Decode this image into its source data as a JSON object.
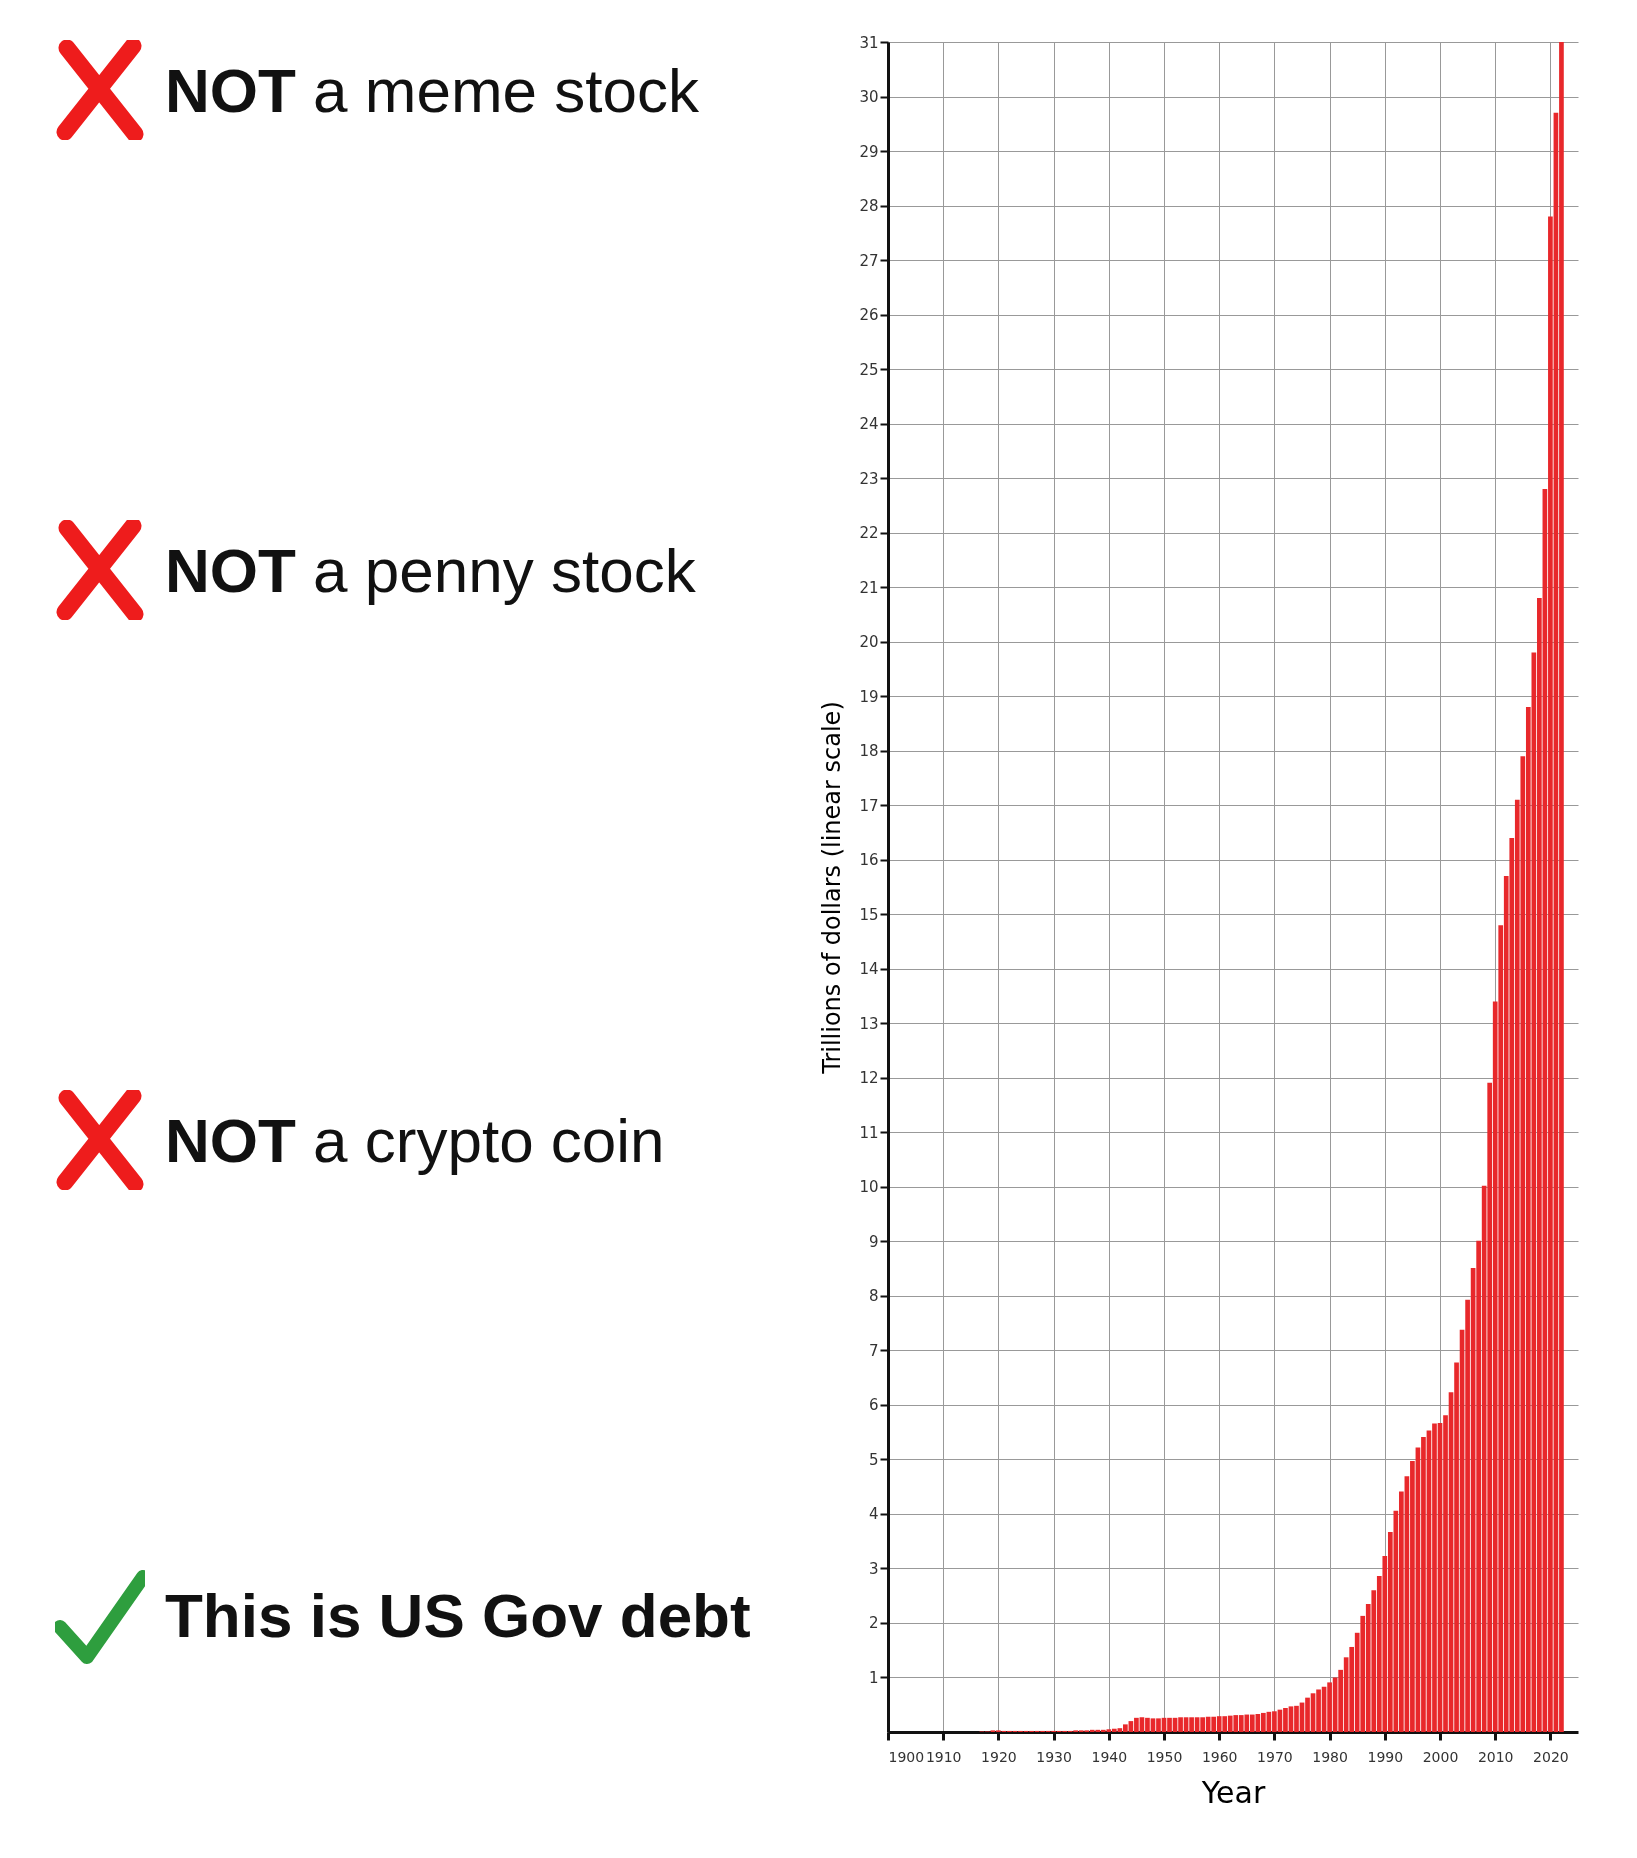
{
  "chart_data": {
    "type": "bar",
    "xlabel": "Year",
    "ylabel": "Trillions of dollars (linear scale)",
    "annotations": [
      "NOT a meme stock",
      "NOT a penny stock",
      "NOT a crypto coin",
      "This is US Gov debt"
    ],
    "x": [
      1900,
      1901,
      1902,
      1903,
      1904,
      1905,
      1906,
      1907,
      1908,
      1909,
      1910,
      1911,
      1912,
      1913,
      1914,
      1915,
      1916,
      1917,
      1918,
      1919,
      1920,
      1921,
      1922,
      1923,
      1924,
      1925,
      1926,
      1927,
      1928,
      1929,
      1930,
      1931,
      1932,
      1933,
      1934,
      1935,
      1936,
      1937,
      1938,
      1939,
      1940,
      1941,
      1942,
      1943,
      1944,
      1945,
      1946,
      1947,
      1948,
      1949,
      1950,
      1951,
      1952,
      1953,
      1954,
      1955,
      1956,
      1957,
      1958,
      1959,
      1960,
      1961,
      1962,
      1963,
      1964,
      1965,
      1966,
      1967,
      1968,
      1969,
      1970,
      1971,
      1972,
      1973,
      1974,
      1975,
      1976,
      1977,
      1978,
      1979,
      1980,
      1981,
      1982,
      1983,
      1984,
      1985,
      1986,
      1987,
      1988,
      1989,
      1990,
      1991,
      1992,
      1993,
      1994,
      1995,
      1996,
      1997,
      1998,
      1999,
      2000,
      2001,
      2002,
      2003,
      2004,
      2005,
      2006,
      2007,
      2008,
      2009,
      2010,
      2011,
      2012,
      2013,
      2014,
      2015,
      2016,
      2017,
      2018,
      2019,
      2020,
      2021,
      2022
    ],
    "series": [
      {
        "color": "#e8282b",
        "values": [
          0,
          0,
          0,
          0,
          0,
          0,
          0,
          0,
          0,
          0,
          0,
          0,
          0,
          0,
          0,
          0,
          0,
          0.01,
          0.01,
          0.03,
          0.03,
          0.02,
          0.02,
          0.02,
          0.02,
          0.02,
          0.02,
          0.02,
          0.02,
          0.02,
          0.02,
          0.02,
          0.02,
          0.02,
          0.03,
          0.03,
          0.03,
          0.04,
          0.04,
          0.04,
          0.05,
          0.06,
          0.07,
          0.14,
          0.2,
          0.26,
          0.27,
          0.26,
          0.25,
          0.25,
          0.26,
          0.26,
          0.26,
          0.27,
          0.27,
          0.27,
          0.27,
          0.27,
          0.28,
          0.28,
          0.29,
          0.29,
          0.3,
          0.31,
          0.31,
          0.32,
          0.32,
          0.33,
          0.35,
          0.37,
          0.38,
          0.41,
          0.44,
          0.47,
          0.48,
          0.54,
          0.63,
          0.71,
          0.78,
          0.83,
          0.91,
          1.0,
          1.14,
          1.37,
          1.56,
          1.82,
          2.13,
          2.35,
          2.6,
          2.86,
          3.23,
          3.67,
          4.06,
          4.41,
          4.69,
          4.97,
          5.22,
          5.41,
          5.53,
          5.66,
          5.67,
          5.81,
          6.23,
          6.78,
          7.38,
          7.93,
          8.51,
          9.01,
          10.02,
          11.91,
          13.4,
          14.8,
          15.7,
          16.4,
          17.1,
          17.9,
          18.8,
          19.8,
          20.8,
          22.8,
          27.8,
          29.7,
          31.0
        ]
      }
    ],
    "xlim": [
      1900,
      2025
    ],
    "xticks": [
      1900,
      1910,
      1920,
      1930,
      1940,
      1950,
      1960,
      1970,
      1980,
      1990,
      2000,
      2010,
      2020
    ],
    "ylim": [
      0,
      31
    ],
    "yticks": [
      1,
      2,
      3,
      4,
      5,
      6,
      7,
      8,
      9,
      10,
      11,
      12,
      13,
      14,
      15,
      16,
      17,
      18,
      19,
      20,
      21,
      22,
      23,
      24,
      25,
      26,
      27,
      28,
      29,
      30,
      31
    ],
    "grid": true
  }
}
